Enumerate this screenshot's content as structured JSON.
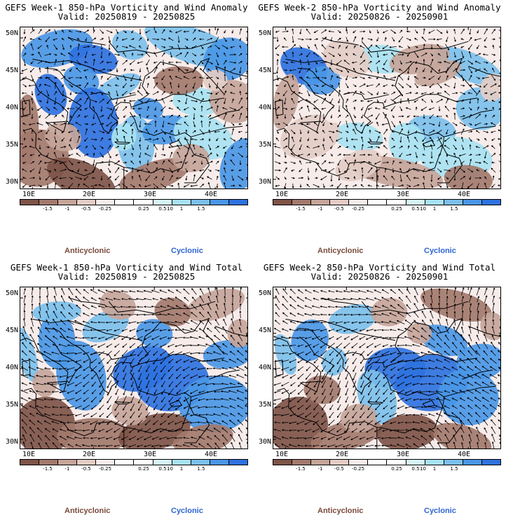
{
  "colors": {
    "levels": [
      "#7e5448",
      "#a37a6d",
      "#c6a59a",
      "#e3cdc5",
      "#f7ecea",
      "#ffffff",
      "#ffffff",
      "#d6f3f8",
      "#a8e2f2",
      "#7cc0ec",
      "#4a97e6",
      "#2e72df"
    ],
    "anticyclonic": "#7a4a3a",
    "cyclonic": "#2e64d0"
  },
  "colorbar": {
    "ticks": [
      "-1.5",
      "-1",
      "-0.5",
      "-0.25",
      "0.25",
      "0.5",
      "1",
      "1.5"
    ],
    "unit": "10"
  },
  "legend": {
    "anticyclonic": "Anticyclonic",
    "cyclonic": "Cyclonic"
  },
  "axes": {
    "lat_labels": [
      "50N",
      "45N",
      "40N",
      "35N",
      "30N"
    ],
    "lon_labels": [
      "10E",
      "20E",
      "30E",
      "40E"
    ]
  },
  "panels": [
    {
      "title": "GEFS Week-1 850-hPa Vorticity and Wind Anomaly",
      "valid": "Valid: 20250819 - 20250825",
      "pattern": "week1_anomaly"
    },
    {
      "title": "GEFS Week-2 850-hPa Vorticity and Wind Anomaly",
      "valid": "Valid: 20250826 - 20250901",
      "pattern": "week2_anomaly"
    },
    {
      "title": "GEFS Week-1 850-hPa Vorticity and Wind Total",
      "valid": "Valid: 20250819 - 20250825",
      "pattern": "week1_total"
    },
    {
      "title": "GEFS Week-2 850-hPa Vorticity and Wind Total",
      "valid": "Valid: 20250826 - 20250901",
      "pattern": "week2_total"
    }
  ]
}
